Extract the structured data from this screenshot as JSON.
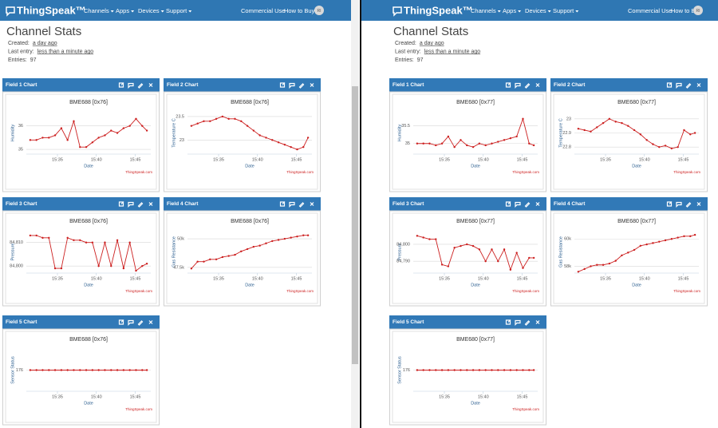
{
  "panels": [
    {
      "nav": {
        "logo": "ThingSpeak™",
        "menu": [
          "Channels",
          "Apps",
          "Devices",
          "Support"
        ],
        "links": [
          "Commercial Use",
          "How to Buy"
        ],
        "avatar": "RI"
      },
      "heading": "Channel Stats",
      "stats": [
        {
          "label": "Created:",
          "value": "a day ago"
        },
        {
          "label": "Last entry:",
          "value": "less than a minute ago"
        },
        {
          "label": "Entries:",
          "value": "97"
        }
      ],
      "widgets": [
        {
          "header": "Field 1 Chart",
          "chart_data": {
            "type": "line",
            "title": "BME688 [0x76]",
            "ylabel": "Humidity",
            "xlabel": "Date",
            "credit": "ThingSpeak.com",
            "color": "#cc1f1f",
            "grid": true,
            "x": [
              931.5,
              932.3,
              933.1,
              933.9,
              934.7,
              935.5,
              936.3,
              937.1,
              937.9,
              938.7,
              939.5,
              940.3,
              941.1,
              941.9,
              942.7,
              943.5,
              944.3,
              945.1,
              945.9,
              946.5
            ],
            "values": [
              35.4,
              35.4,
              35.5,
              35.5,
              35.6,
              35.9,
              35.4,
              36.2,
              35.1,
              35.1,
              35.3,
              35.5,
              35.6,
              35.8,
              35.7,
              35.9,
              36,
              36.3,
              36,
              35.8
            ],
            "xlim": [
              931,
              947
            ],
            "ylim": [
              34.8,
              36.6
            ],
            "xticks": [
              {
                "value": 935,
                "label": "15:35"
              },
              {
                "value": 940,
                "label": "15:40"
              },
              {
                "value": 945,
                "label": "15:45"
              }
            ],
            "yticks": [
              35,
              36
            ]
          }
        },
        {
          "header": "Field 2 Chart",
          "chart_data": {
            "type": "line",
            "title": "BME688 [0x76]",
            "ylabel": "Temperature C",
            "xlabel": "Date",
            "credit": "ThingSpeak.com",
            "color": "#cc1f1f",
            "grid": true,
            "x": [
              931.5,
              932.3,
              933.1,
              933.9,
              934.7,
              935.5,
              936.3,
              937.1,
              937.9,
              938.7,
              939.5,
              940.3,
              941.1,
              941.9,
              942.7,
              943.5,
              944.3,
              945.1,
              945.9,
              946.5
            ],
            "values": [
              23.3,
              23.35,
              23.4,
              23.4,
              23.45,
              23.5,
              23.45,
              23.45,
              23.4,
              23.3,
              23.2,
              23.1,
              23.05,
              23,
              22.95,
              22.9,
              22.85,
              22.8,
              22.85,
              23.05
            ],
            "xlim": [
              931,
              947
            ],
            "ylim": [
              22.7,
              23.6
            ],
            "xticks": [
              {
                "value": 935,
                "label": "15:35"
              },
              {
                "value": 940,
                "label": "15:40"
              },
              {
                "value": 945,
                "label": "15:45"
              }
            ],
            "yticks": [
              23,
              23.5
            ]
          }
        },
        {
          "header": "Field 3 Chart",
          "chart_data": {
            "type": "line",
            "title": "BME688 [0x76]",
            "ylabel": "Pressure",
            "xlabel": "Date",
            "credit": "ThingSpeak.com",
            "color": "#cc1f1f",
            "grid": true,
            "x": [
              931.5,
              932.3,
              933.1,
              933.9,
              934.7,
              935.5,
              936.3,
              937.1,
              937.9,
              938.7,
              939.5,
              940.3,
              941.1,
              941.9,
              942.7,
              943.5,
              944.3,
              945.1,
              945.9,
              946.5
            ],
            "values": [
              84813,
              84813,
              84812,
              84812,
              84799,
              84799,
              84812,
              84811,
              84811,
              84810,
              84810,
              84800,
              84810,
              84800,
              84811,
              84799,
              84810,
              84798,
              84800,
              84801
            ],
            "xlim": [
              931,
              947
            ],
            "ylim": [
              84797,
              84815
            ],
            "xticks": [
              {
                "value": 935,
                "label": "15:35"
              },
              {
                "value": 940,
                "label": "15:40"
              },
              {
                "value": 945,
                "label": "15:45"
              }
            ],
            "yticks": [
              {
                "value": 84800,
                "label": "84,800"
              },
              {
                "value": 84810,
                "label": "84,810"
              }
            ]
          }
        },
        {
          "header": "Field 4 Chart",
          "chart_data": {
            "type": "line",
            "title": "BME688 [0x76]",
            "ylabel": "Gas Resistance",
            "xlabel": "Date",
            "credit": "ThingSpeak.com",
            "color": "#cc1f1f",
            "grid": true,
            "x": [
              931.5,
              932.3,
              933.1,
              933.9,
              934.7,
              935.5,
              936.3,
              937.1,
              937.9,
              938.7,
              939.5,
              940.3,
              941.1,
              941.9,
              942.7,
              943.5,
              944.3,
              945.1,
              945.9,
              946.5
            ],
            "values": [
              47400,
              48000,
              48000,
              48200,
              48200,
              48400,
              48500,
              48600,
              48900,
              49100,
              49300,
              49400,
              49600,
              49800,
              49900,
              50000,
              50100,
              50200,
              50300,
              50300
            ],
            "xlim": [
              931,
              947
            ],
            "ylim": [
              47000,
              50700
            ],
            "xticks": [
              {
                "value": 935,
                "label": "15:35"
              },
              {
                "value": 940,
                "label": "15:40"
              },
              {
                "value": 945,
                "label": "15:45"
              }
            ],
            "yticks": [
              {
                "value": 47500,
                "label": "47.5k"
              },
              {
                "value": 50000,
                "label": "50k"
              }
            ]
          }
        },
        {
          "header": "Field 5 Chart",
          "chart_data": {
            "type": "line",
            "title": "BME688 [0x76]",
            "ylabel": "Sensor Status",
            "xlabel": "Date",
            "credit": "ThingSpeak.com",
            "color": "#cc1f1f",
            "grid": true,
            "x": [
              931.5,
              932.3,
              933.1,
              933.9,
              934.7,
              935.5,
              936.3,
              937.1,
              937.9,
              938.7,
              939.5,
              940.3,
              941.1,
              941.9,
              942.7,
              943.5,
              944.3,
              945.1,
              945.9,
              946.5
            ],
            "values": [
              176,
              176,
              176,
              176,
              176,
              176,
              176,
              176,
              176,
              176,
              176,
              176,
              176,
              176,
              176,
              176,
              176,
              176,
              176,
              176
            ],
            "xlim": [
              931,
              947
            ],
            "ylim": [
              175,
              177
            ],
            "xticks": [
              {
                "value": 935,
                "label": "15:35"
              },
              {
                "value": 940,
                "label": "15:40"
              },
              {
                "value": 945,
                "label": "15:45"
              }
            ],
            "yticks": [
              176
            ]
          }
        }
      ]
    },
    {
      "nav": {
        "logo": "ThingSpeak™",
        "menu": [
          "Channels",
          "Apps",
          "Devices",
          "Support"
        ],
        "links": [
          "Commercial Use",
          "How to Buy"
        ],
        "avatar": "RI"
      },
      "heading": "Channel Stats",
      "stats": [
        {
          "label": "Created:",
          "value": "a day ago"
        },
        {
          "label": "Last entry:",
          "value": "less than a minute ago"
        },
        {
          "label": "Entries:",
          "value": "97"
        }
      ],
      "widgets": [
        {
          "header": "Field 1 Chart",
          "chart_data": {
            "type": "line",
            "title": "BME680 [0x77]",
            "ylabel": "Humidity",
            "xlabel": "Date",
            "credit": "ThingSpeak.com",
            "color": "#cc1f1f",
            "grid": true,
            "x": [
              931.5,
              932.3,
              933.1,
              933.9,
              934.7,
              935.5,
              936.3,
              937.1,
              937.9,
              938.7,
              939.5,
              940.3,
              941.1,
              941.9,
              942.7,
              943.5,
              944.3,
              945.1,
              945.9,
              946.5
            ],
            "values": [
              35,
              35,
              35,
              34.95,
              35,
              35.2,
              34.9,
              35.1,
              34.95,
              34.9,
              35,
              34.95,
              35,
              35.05,
              35.1,
              35.15,
              35.2,
              35.7,
              35,
              34.95
            ],
            "xlim": [
              931,
              947
            ],
            "ylim": [
              34.7,
              35.9
            ],
            "xticks": [
              {
                "value": 935,
                "label": "15:35"
              },
              {
                "value": 940,
                "label": "15:40"
              },
              {
                "value": 945,
                "label": "15:45"
              }
            ],
            "yticks": [
              35,
              35.5
            ]
          }
        },
        {
          "header": "Field 2 Chart",
          "chart_data": {
            "type": "line",
            "title": "BME680 [0x77]",
            "ylabel": "Temperature C",
            "xlabel": "Date",
            "credit": "ThingSpeak.com",
            "color": "#cc1f1f",
            "grid": true,
            "x": [
              931.5,
              932.3,
              933.1,
              933.9,
              934.7,
              935.5,
              936.3,
              937.1,
              937.9,
              938.7,
              939.5,
              940.3,
              941.1,
              941.9,
              942.7,
              943.5,
              944.3,
              945.1,
              945.9,
              946.5
            ],
            "values": [
              22.93,
              22.92,
              22.91,
              22.94,
              22.97,
              23,
              22.98,
              22.97,
              22.95,
              22.92,
              22.89,
              22.85,
              22.82,
              22.8,
              22.81,
              22.79,
              22.8,
              22.92,
              22.89,
              22.9
            ],
            "xlim": [
              931,
              947
            ],
            "ylim": [
              22.75,
              23.05
            ],
            "xticks": [
              {
                "value": 935,
                "label": "15:35"
              },
              {
                "value": 940,
                "label": "15:40"
              },
              {
                "value": 945,
                "label": "15:45"
              }
            ],
            "yticks": [
              22.8,
              22.9,
              {
                "value": 23,
                "label": "23"
              }
            ]
          }
        },
        {
          "header": "Field 3 Chart",
          "chart_data": {
            "type": "line",
            "title": "BME680 [0x77]",
            "ylabel": "Pressure",
            "xlabel": "Date",
            "credit": "ThingSpeak.com",
            "color": "#cc1f1f",
            "grid": true,
            "x": [
              931.5,
              932.3,
              933.1,
              933.9,
              934.7,
              935.5,
              936.3,
              937.1,
              937.9,
              938.7,
              939.5,
              940.3,
              941.1,
              941.9,
              942.7,
              943.5,
              944.3,
              945.1,
              945.9,
              946.5
            ],
            "values": [
              84805,
              84804,
              84803,
              84803,
              84788,
              84787,
              84798,
              84799,
              84800,
              84799,
              84797,
              84790,
              84797,
              84790,
              84797,
              84785,
              84795,
              84786,
              84792,
              84792
            ],
            "xlim": [
              931,
              947
            ],
            "ylim": [
              84783,
              84808
            ],
            "xticks": [
              {
                "value": 935,
                "label": "15:35"
              },
              {
                "value": 940,
                "label": "15:40"
              },
              {
                "value": 945,
                "label": "15:45"
              }
            ],
            "yticks": [
              {
                "value": 84790,
                "label": "84,790"
              },
              {
                "value": 84800,
                "label": "84,800"
              }
            ]
          }
        },
        {
          "header": "Field 4 Chart",
          "chart_data": {
            "type": "line",
            "title": "BME680 [0x77]",
            "ylabel": "Gas Resistance",
            "xlabel": "Date",
            "credit": "ThingSpeak.com",
            "color": "#cc1f1f",
            "grid": true,
            "x": [
              931.5,
              932.3,
              933.1,
              933.9,
              934.7,
              935.5,
              936.3,
              937.1,
              937.9,
              938.7,
              939.5,
              940.3,
              941.1,
              941.9,
              942.7,
              943.5,
              944.3,
              945.1,
              945.9,
              946.5
            ],
            "values": [
              57600,
              57800,
              58000,
              58100,
              58100,
              58200,
              58400,
              58800,
              59000,
              59200,
              59500,
              59600,
              59700,
              59800,
              59900,
              60000,
              60100,
              60200,
              60200,
              60300
            ],
            "xlim": [
              931,
              947
            ],
            "ylim": [
              57500,
              60600
            ],
            "xticks": [
              {
                "value": 935,
                "label": "15:35"
              },
              {
                "value": 940,
                "label": "15:40"
              },
              {
                "value": 945,
                "label": "15:45"
              }
            ],
            "yticks": [
              {
                "value": 58000,
                "label": "58k"
              },
              {
                "value": 60000,
                "label": "60k"
              }
            ]
          }
        },
        {
          "header": "Field 5 Chart",
          "chart_data": {
            "type": "line",
            "title": "BME680 [0x77]",
            "ylabel": "Sensor Status",
            "xlabel": "Date",
            "credit": "ThingSpeak.com",
            "color": "#cc1f1f",
            "grid": true,
            "x": [
              931.5,
              932.3,
              933.1,
              933.9,
              934.7,
              935.5,
              936.3,
              937.1,
              937.9,
              938.7,
              939.5,
              940.3,
              941.1,
              941.9,
              942.7,
              943.5,
              944.3,
              945.1,
              945.9,
              946.5
            ],
            "values": [
              176,
              176,
              176,
              176,
              176,
              176,
              176,
              176,
              176,
              176,
              176,
              176,
              176,
              176,
              176,
              176,
              176,
              176,
              176,
              176
            ],
            "xlim": [
              931,
              947
            ],
            "ylim": [
              175,
              177
            ],
            "xticks": [
              {
                "value": 935,
                "label": "15:35"
              },
              {
                "value": 940,
                "label": "15:40"
              },
              {
                "value": 945,
                "label": "15:45"
              }
            ],
            "yticks": [
              176
            ]
          }
        }
      ]
    }
  ]
}
